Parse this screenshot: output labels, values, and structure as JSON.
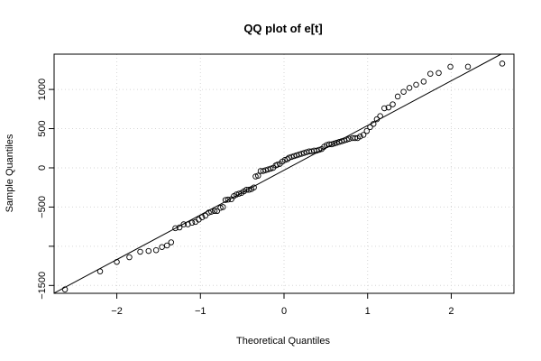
{
  "chart_data": {
    "type": "scatter",
    "title": "QQ plot of e[t]",
    "xlabel": "Theoretical Quantiles",
    "ylabel": "Sample Quantiles",
    "xlim": [
      -2.75,
      2.75
    ],
    "ylim": [
      -1600,
      1450
    ],
    "x_ticks": [
      -2,
      -1,
      0,
      1,
      2
    ],
    "x_tick_labels": [
      "−2",
      "−1",
      "0",
      "1",
      "2"
    ],
    "y_ticks": [
      -1500,
      -1000,
      -500,
      0,
      500,
      1000
    ],
    "y_tick_labels": [
      "−1500",
      "",
      "−500",
      "0",
      "500",
      "1000"
    ],
    "grid": true,
    "reference_line": {
      "intercept": -30,
      "slope": 570
    },
    "points": [
      [
        -2.62,
        -1550
      ],
      [
        -2.2,
        -1320
      ],
      [
        -2.0,
        -1200
      ],
      [
        -1.85,
        -1140
      ],
      [
        -1.72,
        -1070
      ],
      [
        -1.62,
        -1060
      ],
      [
        -1.53,
        -1050
      ],
      [
        -1.46,
        -1010
      ],
      [
        -1.4,
        -990
      ],
      [
        -1.35,
        -950
      ],
      [
        -1.3,
        -770
      ],
      [
        -1.25,
        -760
      ],
      [
        -1.2,
        -720
      ],
      [
        -1.15,
        -720
      ],
      [
        -1.1,
        -700
      ],
      [
        -1.06,
        -690
      ],
      [
        -1.02,
        -660
      ],
      [
        -0.98,
        -630
      ],
      [
        -0.94,
        -610
      ],
      [
        -0.9,
        -570
      ],
      [
        -0.87,
        -560
      ],
      [
        -0.83,
        -550
      ],
      [
        -0.8,
        -550
      ],
      [
        -0.76,
        -510
      ],
      [
        -0.73,
        -500
      ],
      [
        -0.7,
        -410
      ],
      [
        -0.67,
        -405
      ],
      [
        -0.63,
        -400
      ],
      [
        -0.6,
        -360
      ],
      [
        -0.57,
        -340
      ],
      [
        -0.54,
        -330
      ],
      [
        -0.51,
        -320
      ],
      [
        -0.48,
        -300
      ],
      [
        -0.45,
        -280
      ],
      [
        -0.42,
        -280
      ],
      [
        -0.39,
        -270
      ],
      [
        -0.36,
        -250
      ],
      [
        -0.34,
        -110
      ],
      [
        -0.31,
        -100
      ],
      [
        -0.28,
        -40
      ],
      [
        -0.25,
        -40
      ],
      [
        -0.22,
        -30
      ],
      [
        -0.19,
        -20
      ],
      [
        -0.16,
        -10
      ],
      [
        -0.13,
        0
      ],
      [
        -0.1,
        30
      ],
      [
        -0.08,
        40
      ],
      [
        -0.05,
        50
      ],
      [
        -0.02,
        80
      ],
      [
        0.01,
        100
      ],
      [
        0.04,
        110
      ],
      [
        0.06,
        130
      ],
      [
        0.09,
        140
      ],
      [
        0.12,
        150
      ],
      [
        0.15,
        160
      ],
      [
        0.18,
        170
      ],
      [
        0.21,
        180
      ],
      [
        0.24,
        190
      ],
      [
        0.27,
        200
      ],
      [
        0.3,
        210
      ],
      [
        0.33,
        210
      ],
      [
        0.36,
        220
      ],
      [
        0.39,
        220
      ],
      [
        0.42,
        230
      ],
      [
        0.45,
        240
      ],
      [
        0.48,
        270
      ],
      [
        0.51,
        290
      ],
      [
        0.54,
        300
      ],
      [
        0.57,
        300
      ],
      [
        0.6,
        310
      ],
      [
        0.63,
        320
      ],
      [
        0.66,
        330
      ],
      [
        0.69,
        340
      ],
      [
        0.72,
        350
      ],
      [
        0.75,
        360
      ],
      [
        0.78,
        370
      ],
      [
        0.82,
        380
      ],
      [
        0.85,
        380
      ],
      [
        0.88,
        380
      ],
      [
        0.91,
        400
      ],
      [
        0.95,
        420
      ],
      [
        0.99,
        470
      ],
      [
        1.03,
        520
      ],
      [
        1.07,
        560
      ],
      [
        1.11,
        620
      ],
      [
        1.15,
        660
      ],
      [
        1.2,
        760
      ],
      [
        1.25,
        770
      ],
      [
        1.3,
        810
      ],
      [
        1.36,
        910
      ],
      [
        1.43,
        970
      ],
      [
        1.5,
        1020
      ],
      [
        1.58,
        1060
      ],
      [
        1.67,
        1100
      ],
      [
        1.75,
        1200
      ],
      [
        1.85,
        1210
      ],
      [
        1.99,
        1290
      ],
      [
        2.2,
        1290
      ],
      [
        2.61,
        1330
      ]
    ]
  }
}
